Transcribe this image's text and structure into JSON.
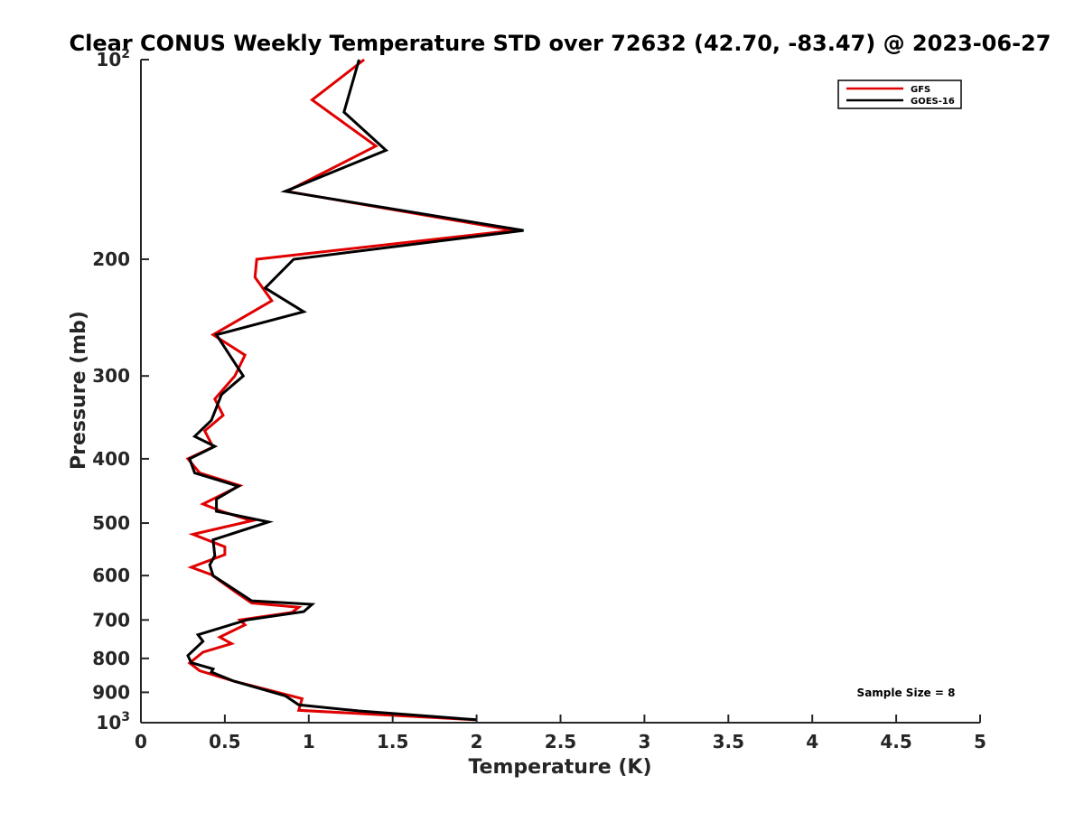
{
  "chart_data": {
    "type": "line",
    "title": "Clear CONUS Weekly Temperature STD over 72632 (42.70, -83.47) @ 2023-06-27",
    "xlabel": "Temperature (K)",
    "ylabel": "Pressure (mb)",
    "xlim": [
      0,
      5
    ],
    "ylim": [
      1000,
      100
    ],
    "yscale": "log",
    "y_reversed": true,
    "x_ticks": [
      0,
      0.5,
      1,
      1.5,
      2,
      2.5,
      3,
      3.5,
      4,
      4.5,
      5
    ],
    "x_tick_labels": [
      "0",
      "0.5",
      "1",
      "1.5",
      "2",
      "2.5",
      "3",
      "3.5",
      "4",
      "4.5",
      "5"
    ],
    "y_ticks": [
      100,
      200,
      300,
      400,
      500,
      600,
      700,
      800,
      900,
      1000
    ],
    "y_tick_labels": [
      {
        "base": "10",
        "sup": "2"
      },
      {
        "base": "200",
        "sup": ""
      },
      {
        "base": "300",
        "sup": ""
      },
      {
        "base": "400",
        "sup": ""
      },
      {
        "base": "500",
        "sup": ""
      },
      {
        "base": "600",
        "sup": ""
      },
      {
        "base": "700",
        "sup": ""
      },
      {
        "base": "800",
        "sup": ""
      },
      {
        "base": "900",
        "sup": ""
      },
      {
        "base": "10",
        "sup": "3"
      }
    ],
    "grid": false,
    "legend_position": "top-right",
    "series": [
      {
        "name": "GFS",
        "color": "#e00000",
        "points": [
          [
            1.33,
            100
          ],
          [
            1.02,
            115
          ],
          [
            1.4,
            135
          ],
          [
            0.87,
            158
          ],
          [
            2.22,
            181
          ],
          [
            0.69,
            200
          ],
          [
            0.68,
            213
          ],
          [
            0.78,
            231
          ],
          [
            0.43,
            260
          ],
          [
            0.62,
            279
          ],
          [
            0.56,
            300
          ],
          [
            0.44,
            325
          ],
          [
            0.49,
            344
          ],
          [
            0.38,
            363
          ],
          [
            0.43,
            384
          ],
          [
            0.28,
            400
          ],
          [
            0.35,
            420
          ],
          [
            0.59,
            439
          ],
          [
            0.37,
            468
          ],
          [
            0.48,
            480
          ],
          [
            0.66,
            496
          ],
          [
            0.31,
            520
          ],
          [
            0.5,
            543
          ],
          [
            0.5,
            558
          ],
          [
            0.3,
            583
          ],
          [
            0.42,
            598
          ],
          [
            0.57,
            637
          ],
          [
            0.66,
            660
          ],
          [
            0.94,
            670
          ],
          [
            0.9,
            682
          ],
          [
            0.59,
            700
          ],
          [
            0.62,
            712
          ],
          [
            0.47,
            743
          ],
          [
            0.54,
            760
          ],
          [
            0.37,
            783
          ],
          [
            0.29,
            813
          ],
          [
            0.35,
            835
          ],
          [
            0.55,
            865
          ],
          [
            0.96,
            920
          ],
          [
            0.94,
            958
          ],
          [
            1.99,
            990
          ]
        ]
      },
      {
        "name": "GOES-16",
        "color": "#000000",
        "points": [
          [
            1.3,
            100
          ],
          [
            1.21,
            120
          ],
          [
            1.46,
            137
          ],
          [
            0.86,
            158
          ],
          [
            2.28,
            181
          ],
          [
            0.91,
            200
          ],
          [
            0.74,
            221
          ],
          [
            0.97,
            240
          ],
          [
            0.45,
            260
          ],
          [
            0.61,
            300
          ],
          [
            0.48,
            320
          ],
          [
            0.42,
            350
          ],
          [
            0.32,
            370
          ],
          [
            0.44,
            383
          ],
          [
            0.29,
            400
          ],
          [
            0.32,
            420
          ],
          [
            0.58,
            440
          ],
          [
            0.45,
            460
          ],
          [
            0.45,
            480
          ],
          [
            0.76,
            498
          ],
          [
            0.43,
            530
          ],
          [
            0.44,
            560
          ],
          [
            0.41,
            578
          ],
          [
            0.43,
            600
          ],
          [
            0.66,
            655
          ],
          [
            1.02,
            663
          ],
          [
            0.97,
            680
          ],
          [
            0.63,
            700
          ],
          [
            0.34,
            737
          ],
          [
            0.37,
            754
          ],
          [
            0.28,
            792
          ],
          [
            0.3,
            812
          ],
          [
            0.43,
            830
          ],
          [
            0.42,
            839
          ],
          [
            0.55,
            865
          ],
          [
            0.86,
            911
          ],
          [
            0.94,
            940
          ],
          [
            1.3,
            960
          ],
          [
            2.0,
            990
          ]
        ]
      }
    ],
    "annotation": "Sample Size = 8"
  }
}
